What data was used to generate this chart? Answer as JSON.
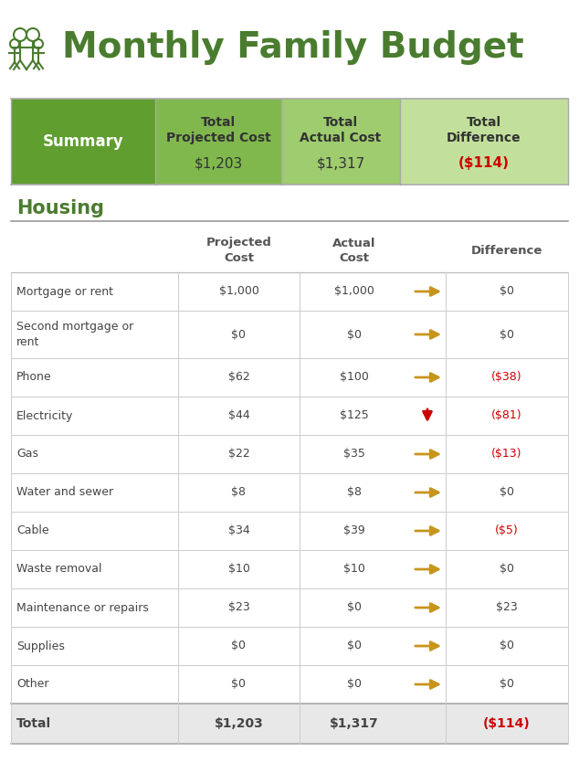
{
  "title": "Monthly Family Budget",
  "title_color": "#4a7c2f",
  "title_fontsize": 28,
  "background_color": "#ffffff",
  "summary": {
    "label": "Summary",
    "col1_label": "Total\nProjected Cost",
    "col2_label": "Total\nActual Cost",
    "col3_label": "Total\nDifference",
    "col1_val": "$1,203",
    "col2_val": "$1,317",
    "col3_val": "($114)",
    "summary_bg": "#5f9e2f",
    "col1_bg": "#80b84e",
    "col2_bg": "#9ecc6e",
    "col3_bg": "#c2e09b",
    "summary_label_color": "#ffffff",
    "header_text_color": "#333333",
    "val_color": "#333333",
    "diff_color": "#cc0000"
  },
  "section_title": "Housing",
  "section_title_color": "#4a7c2f",
  "section_title_fontsize": 15,
  "col_headers": [
    "Projected\nCost",
    "Actual\nCost",
    "Difference"
  ],
  "col_header_color": "#555555",
  "rows": [
    {
      "label": "Mortgage or rent",
      "proj": "$1,000",
      "actual": "$1,000",
      "arrow": "right",
      "diff": "$0",
      "diff_neg": false
    },
    {
      "label": "Second mortgage or\nrent",
      "proj": "$0",
      "actual": "$0",
      "arrow": "right",
      "diff": "$0",
      "diff_neg": false
    },
    {
      "label": "Phone",
      "proj": "$62",
      "actual": "$100",
      "arrow": "right",
      "diff": "($38)",
      "diff_neg": true
    },
    {
      "label": "Electricity",
      "proj": "$44",
      "actual": "$125",
      "arrow": "down",
      "diff": "($81)",
      "diff_neg": true
    },
    {
      "label": "Gas",
      "proj": "$22",
      "actual": "$35",
      "arrow": "right",
      "diff": "($13)",
      "diff_neg": true
    },
    {
      "label": "Water and sewer",
      "proj": "$8",
      "actual": "$8",
      "arrow": "right",
      "diff": "$0",
      "diff_neg": false
    },
    {
      "label": "Cable",
      "proj": "$34",
      "actual": "$39",
      "arrow": "right",
      "diff": "($5)",
      "diff_neg": true
    },
    {
      "label": "Waste removal",
      "proj": "$10",
      "actual": "$10",
      "arrow": "right",
      "diff": "$0",
      "diff_neg": false
    },
    {
      "label": "Maintenance or repairs",
      "proj": "$23",
      "actual": "$0",
      "arrow": "right",
      "diff": "$23",
      "diff_neg": false
    },
    {
      "label": "Supplies",
      "proj": "$0",
      "actual": "$0",
      "arrow": "right",
      "diff": "$0",
      "diff_neg": false
    },
    {
      "label": "Other",
      "proj": "$0",
      "actual": "$0",
      "arrow": "right",
      "diff": "$0",
      "diff_neg": false
    }
  ],
  "total_row": {
    "label": "Total",
    "proj": "$1,203",
    "actual": "$1,317",
    "diff": "($114)",
    "diff_neg": true
  },
  "arrow_color_right": "#c8951c",
  "arrow_color_down": "#cc0000",
  "grid_color": "#cccccc",
  "row_text_color": "#444444",
  "total_bg": "#e8e8e8"
}
